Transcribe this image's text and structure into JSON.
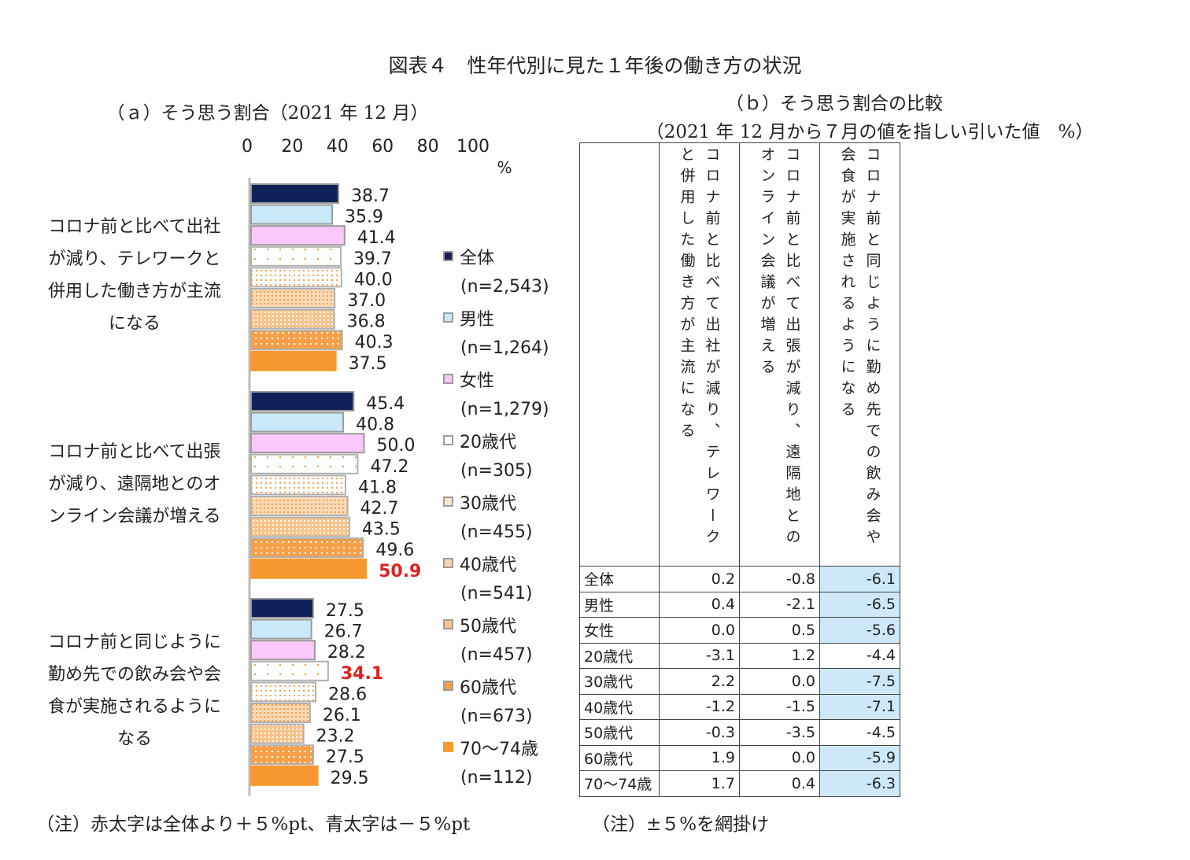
{
  "title": "図表４　性年代別に見た１年後の働き方の状況",
  "panel_a": {
    "subtitle": "（ａ）そう思う割合（2021 年 12 月）",
    "categories": [
      "コロナ前と比べて出社が減り、テレワークと併用した働き方が主流になる",
      "コロナ前と比べて出張が減り、遠隔地とのオンライン会議が増える",
      "コロナ前と同じように勤め先での飲み会や会食が実施されるようになる"
    ],
    "category_lines": [
      [
        "コロナ前と比べて出社",
        "が減り、テレワークと",
        "併用した働き方が主流",
        "になる"
      ],
      [
        "コロナ前と比べて出張",
        "が減り、遠隔地とのオ",
        "ンライン会議が増える"
      ],
      [
        "コロナ前と同じように",
        "勤め先での飲み会や会",
        "食が実施されるように",
        "なる"
      ]
    ],
    "legend": [
      {
        "name": "全体",
        "n": "(n=2,543)"
      },
      {
        "name": "男性",
        "n": "(n=1,264)"
      },
      {
        "name": "女性",
        "n": "(n=1,279)"
      },
      {
        "name": "20歳代",
        "n": "(n=305)"
      },
      {
        "name": "30歳代",
        "n": "(n=455)"
      },
      {
        "name": "40歳代",
        "n": "(n=541)"
      },
      {
        "name": "50歳代",
        "n": "(n=457)"
      },
      {
        "name": "60歳代",
        "n": "(n=673)"
      },
      {
        "name": "70～74歳",
        "n": "(n=112)"
      }
    ]
  },
  "chart_data": {
    "type": "bar",
    "orientation": "horizontal",
    "xlim": [
      0,
      100
    ],
    "x_ticks": [
      "0",
      "20",
      "40",
      "60",
      "80",
      "100"
    ],
    "x_unit": "%",
    "categories": [
      "コロナ前と比べて出社が減り、テレワークと併用した働き方が主流になる",
      "コロナ前と比べて出張が減り、遠隔地とのオンライン会議が増える",
      "コロナ前と同じように勤め先での飲み会や会食が実施されるようになる"
    ],
    "series": [
      {
        "name": "全体",
        "color": "#10215a",
        "values": [
          38.7,
          45.4,
          27.5
        ]
      },
      {
        "name": "男性",
        "color": "#c9e8fa",
        "values": [
          35.9,
          40.8,
          26.7
        ]
      },
      {
        "name": "女性",
        "color": "#fbc8fb",
        "values": [
          41.4,
          50.0,
          28.2
        ]
      },
      {
        "name": "20歳代",
        "color": "#f7a04a",
        "values": [
          39.7,
          47.2,
          34.1
        ]
      },
      {
        "name": "30歳代",
        "color": "#f7a04a",
        "values": [
          40.0,
          41.8,
          28.6
        ]
      },
      {
        "name": "40歳代",
        "color": "#f7a04a",
        "values": [
          37.0,
          42.7,
          26.1
        ]
      },
      {
        "name": "50歳代",
        "color": "#f7a04a",
        "values": [
          36.8,
          43.5,
          23.2
        ]
      },
      {
        "name": "60歳代",
        "color": "#f7a04a",
        "values": [
          40.3,
          49.6,
          27.5
        ]
      },
      {
        "name": "70～74歳",
        "color": "#f7992f",
        "values": [
          37.5,
          50.9,
          29.5
        ]
      }
    ],
    "value_labels": [
      [
        "38.7",
        "35.9",
        "41.4",
        "39.7",
        "40.0",
        "37.0",
        "36.8",
        "40.3",
        "37.5"
      ],
      [
        "45.4",
        "40.8",
        "50.0",
        "47.2",
        "41.8",
        "42.7",
        "43.5",
        "49.6",
        "50.9"
      ],
      [
        "27.5",
        "26.7",
        "28.2",
        "34.1",
        "28.6",
        "26.1",
        "23.2",
        "27.5",
        "29.5"
      ]
    ],
    "highlighted_red": [
      {
        "category": 1,
        "series": 8
      },
      {
        "category": 2,
        "series": 3
      }
    ],
    "highlight_color": "#e02020"
  },
  "panel_b": {
    "subtitle1": "（ｂ）そう思う割合の比較",
    "subtitle2": "（2021 年 12 月から７月の値を指しい引いた値　%）",
    "headers": [
      "コロナ前と比べて出社が減り、テレワークと併用した働き方が主流になる",
      "コロナ前と比べて出張が減り、遠隔地とのオンライン会議が増える",
      "コロナ前と同じように勤め先での飲み会や会食が実施されるようになる"
    ],
    "rows": [
      {
        "label": "全体",
        "values": [
          "0.2",
          "-0.8",
          "-6.1"
        ],
        "hl": [
          false,
          false,
          true
        ]
      },
      {
        "label": "男性",
        "values": [
          "0.4",
          "-2.1",
          "-6.5"
        ],
        "hl": [
          false,
          false,
          true
        ]
      },
      {
        "label": "女性",
        "values": [
          "0.0",
          "0.5",
          "-5.6"
        ],
        "hl": [
          false,
          false,
          true
        ]
      },
      {
        "label": "20歳代",
        "values": [
          "-3.1",
          "1.2",
          "-4.4"
        ],
        "hl": [
          false,
          false,
          false
        ]
      },
      {
        "label": "30歳代",
        "values": [
          "2.2",
          "0.0",
          "-7.5"
        ],
        "hl": [
          false,
          false,
          true
        ]
      },
      {
        "label": "40歳代",
        "values": [
          "-1.2",
          "-1.5",
          "-7.1"
        ],
        "hl": [
          false,
          false,
          true
        ]
      },
      {
        "label": "50歳代",
        "values": [
          "-0.3",
          "-3.5",
          "-4.5"
        ],
        "hl": [
          false,
          false,
          false
        ]
      },
      {
        "label": "60歳代",
        "values": [
          "1.9",
          "0.0",
          "-5.9"
        ],
        "hl": [
          false,
          false,
          true
        ]
      },
      {
        "label": "70～74歳",
        "values": [
          "1.7",
          "0.4",
          "-6.3"
        ],
        "hl": [
          false,
          false,
          true
        ]
      }
    ],
    "highlight_color": "#cde9f9"
  },
  "notes": {
    "left": "（注）赤太字は全体より＋５%pt、青太字は－５%pt",
    "right": "（注）±５%を網掛け"
  }
}
